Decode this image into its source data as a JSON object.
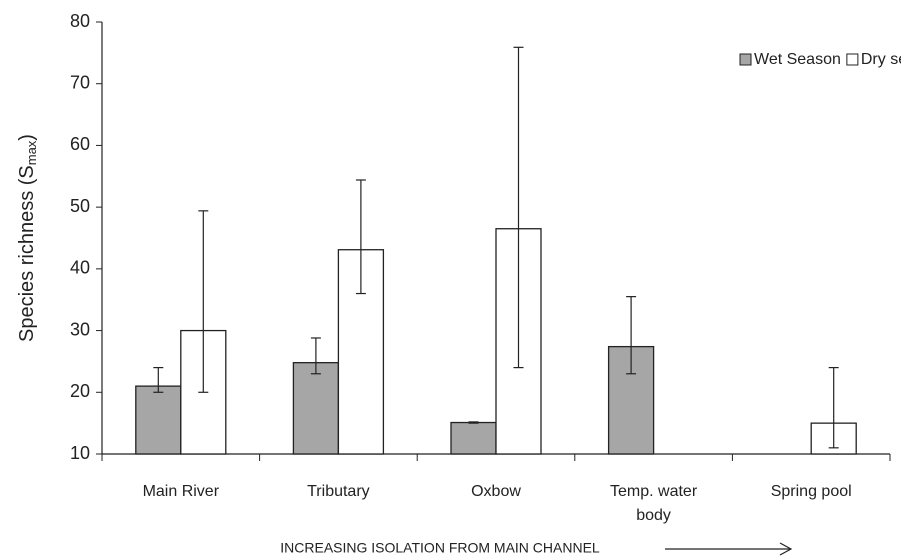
{
  "chart_data": {
    "type": "bar",
    "ylabel": [
      "Species richness (S",
      "max",
      ")"
    ],
    "xlabel": "INCREASING ISOLATION FROM MAIN CHANNEL",
    "categories": [
      "Main River",
      "Tributary",
      "Oxbow",
      "Temp. water body",
      "Spring pool"
    ],
    "series": [
      {
        "name": "Wet Season",
        "color": "#a6a6a6",
        "values": [
          21,
          24.8,
          15.1,
          27.4,
          null
        ],
        "lower": [
          20,
          23,
          15,
          23,
          null
        ],
        "upper": [
          24,
          28.8,
          15.2,
          35.5,
          null
        ]
      },
      {
        "name": "Dry season",
        "color": "#ffffff",
        "values": [
          30,
          43.1,
          46.5,
          null,
          15
        ],
        "lower": [
          20,
          36,
          24,
          null,
          11
        ],
        "upper": [
          49.4,
          54.4,
          75.9,
          null,
          24
        ]
      }
    ],
    "ylim": [
      10,
      80
    ],
    "yticks": [
      10,
      20,
      30,
      40,
      50,
      60,
      70,
      80
    ],
    "grid": false,
    "legend": "top-right"
  }
}
